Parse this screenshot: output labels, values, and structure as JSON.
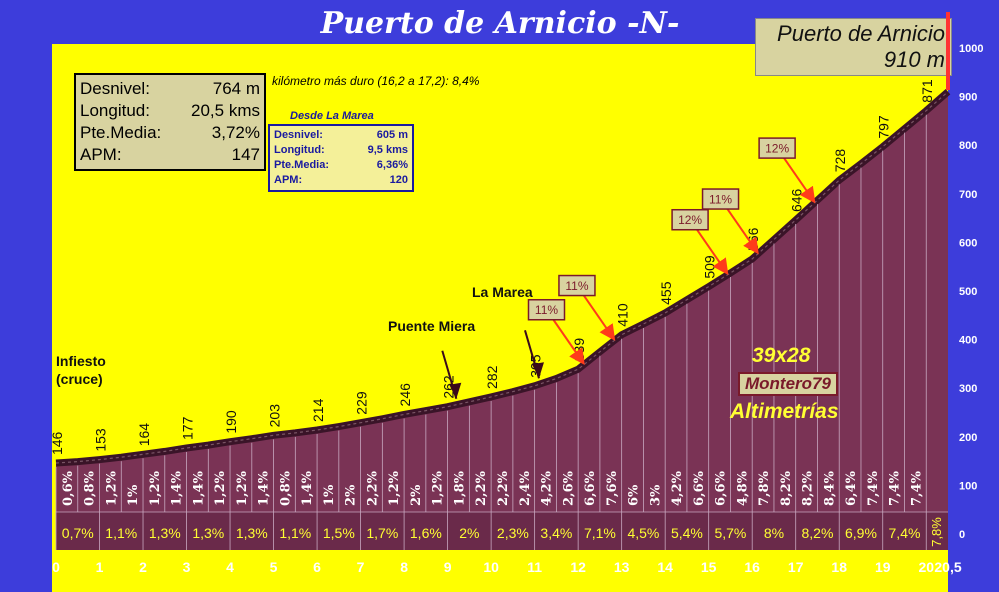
{
  "title": "Puerto de Arnicio -N-",
  "summit": {
    "name": "Puerto de Arnicio",
    "altitude": "910 m"
  },
  "stats": [
    {
      "label": "Desnivel:",
      "value": "764 m"
    },
    {
      "label": "Longitud:",
      "value": "20,5 kms"
    },
    {
      "label": "Pte.Media:",
      "value": "3,72%"
    },
    {
      "label": "APM:",
      "value": "147"
    }
  ],
  "hardest_km": "kilómetro más duro (16,2 a 17,2):  8,4%",
  "from_marea": {
    "title": "Desde La Marea",
    "rows": [
      {
        "label": "Desnivel:",
        "value": "605 m"
      },
      {
        "label": "Longitud:",
        "value": "9,5 kms"
      },
      {
        "label": "Pte.Media:",
        "value": "6,36%"
      },
      {
        "label": "APM:",
        "value": "120"
      }
    ]
  },
  "places": {
    "infiesto": "Infiesto\n(cruce)",
    "puente_miera": "Puente Miera",
    "la_marea": "La Marea"
  },
  "credits": {
    "gearing": "39x28",
    "author": "Montero79",
    "site": "Altimetrías"
  },
  "colors": {
    "background": "#3d3ddb",
    "plot": "#ffff00",
    "profile": "#7a3355",
    "band": "#6a2a4a",
    "label_box": "#d8d3a0",
    "arrow": "#ff3b1a"
  },
  "chart_data": {
    "type": "area",
    "xlabel": "",
    "ylabel": "",
    "xlim": [
      0,
      20.5
    ],
    "ylim": [
      0,
      1000
    ],
    "x_ticks": [
      "0",
      "1",
      "2",
      "3",
      "4",
      "5",
      "6",
      "7",
      "8",
      "9",
      "10",
      "11",
      "12",
      "13",
      "14",
      "15",
      "16",
      "17",
      "18",
      "19",
      "20",
      "20,5"
    ],
    "y_ticks": [
      "0",
      "100",
      "200",
      "300",
      "400",
      "500",
      "600",
      "700",
      "800",
      "900",
      "1000"
    ],
    "profile": {
      "x": [
        0,
        0.5,
        1,
        1.5,
        2,
        2.5,
        3,
        3.5,
        4,
        4.5,
        5,
        5.5,
        6,
        6.5,
        7,
        7.5,
        8,
        8.5,
        9,
        9.5,
        10,
        10.5,
        11,
        11.5,
        12,
        12.5,
        13,
        13.5,
        14,
        14.5,
        15,
        15.5,
        16,
        16.5,
        17,
        17.5,
        18,
        18.5,
        19,
        19.5,
        20,
        20.5
      ],
      "elevation": [
        146,
        149,
        153,
        158,
        164,
        170,
        177,
        183,
        190,
        196,
        203,
        208,
        214,
        221,
        229,
        237,
        246,
        254,
        262,
        272,
        282,
        293,
        305,
        320,
        339,
        375,
        410,
        432,
        455,
        482,
        509,
        537,
        566,
        606,
        646,
        687,
        728,
        762,
        797,
        834,
        871,
        910
      ]
    },
    "point_labels": [
      {
        "x": 0,
        "label": "146"
      },
      {
        "x": 1,
        "label": "153"
      },
      {
        "x": 2,
        "label": "164"
      },
      {
        "x": 3,
        "label": "177"
      },
      {
        "x": 4,
        "label": "190"
      },
      {
        "x": 5,
        "label": "203"
      },
      {
        "x": 6,
        "label": "214"
      },
      {
        "x": 7,
        "label": "229"
      },
      {
        "x": 8,
        "label": "246"
      },
      {
        "x": 9,
        "label": "262"
      },
      {
        "x": 10,
        "label": "282"
      },
      {
        "x": 11,
        "label": "305"
      },
      {
        "x": 12,
        "label": "339"
      },
      {
        "x": 13,
        "label": "410"
      },
      {
        "x": 14,
        "label": "455"
      },
      {
        "x": 15,
        "label": "509"
      },
      {
        "x": 16,
        "label": "566"
      },
      {
        "x": 17,
        "label": "646"
      },
      {
        "x": 18,
        "label": "728"
      },
      {
        "x": 19,
        "label": "797"
      },
      {
        "x": 20,
        "label": "871"
      }
    ],
    "half_km_gradients": [
      "0,6%",
      "0,8%",
      "1,2%",
      "1%",
      "1,2%",
      "1,4%",
      "1,4%",
      "1,2%",
      "1,2%",
      "1,4%",
      "0,8%",
      "1,4%",
      "1%",
      "2%",
      "2,2%",
      "1,2%",
      "2%",
      "1,2%",
      "1,8%",
      "2,2%",
      "2,2%",
      "2,4%",
      "4,2%",
      "2,6%",
      "6,6%",
      "7,6%",
      "6%",
      "3%",
      "4,2%",
      "6,6%",
      "6,6%",
      "4,8%",
      "7,8%",
      "8,2%",
      "8,2%",
      "8,4%",
      "6,4%",
      "7,4%",
      "7,4%",
      "7,4%"
    ],
    "km_gradients": [
      "0,7%",
      "1,1%",
      "1,3%",
      "1,3%",
      "1,3%",
      "1,1%",
      "1,5%",
      "1,7%",
      "1,6%",
      "2%",
      "2,3%",
      "3,4%",
      "7,1%",
      "4,5%",
      "5,4%",
      "5,7%",
      "8%",
      "8,2%",
      "6,9%",
      "7,4%"
    ],
    "last_gradient": "7,8%",
    "steep_markers": [
      {
        "x": 12.1,
        "label": "11%"
      },
      {
        "x": 12.8,
        "label": "11%"
      },
      {
        "x": 15.4,
        "label": "12%"
      },
      {
        "x": 16.1,
        "label": "11%"
      },
      {
        "x": 17.4,
        "label": "12%"
      }
    ],
    "place_markers": [
      {
        "x": 9.2,
        "name": "Puente Miera"
      },
      {
        "x": 11.1,
        "name": "La Marea"
      }
    ]
  }
}
